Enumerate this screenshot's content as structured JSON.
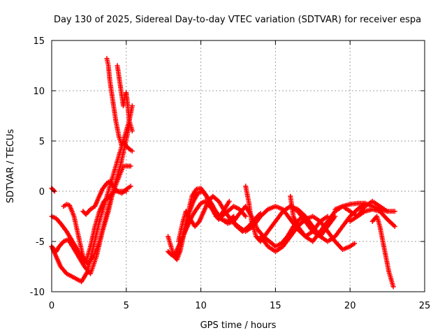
{
  "chart_data": {
    "type": "scatter",
    "title": "Day 130 of 2025, Sidereal Day-to-day VTEC variation (SDTVAR) for receiver espa",
    "xlabel": "GPS time / hours",
    "ylabel": "SDTVAR / TECUs",
    "xlim": [
      0,
      25
    ],
    "ylim": [
      -10,
      15
    ],
    "xticks": [
      0,
      5,
      10,
      15,
      20,
      25
    ],
    "yticks": [
      -10,
      -5,
      0,
      5,
      10,
      15
    ],
    "grid": true,
    "marker": "plus",
    "color": "#ff0000",
    "series": [
      {
        "name": "arc-1",
        "x": [
          0.0,
          0.3,
          0.6,
          1.0,
          1.5,
          2.0,
          2.4,
          2.8,
          3.2,
          3.6,
          4.0,
          4.4,
          4.8,
          5.2,
          5.4
        ],
        "y": [
          -5.5,
          -6.5,
          -7.5,
          -8.2,
          -8.6,
          -9.0,
          -8.0,
          -5.5,
          -3.0,
          -1.0,
          1.0,
          3.0,
          5.0,
          7.0,
          8.5
        ]
      },
      {
        "name": "arc-2",
        "x": [
          0.0,
          0.3,
          0.5,
          0.8,
          1.1,
          1.4,
          1.8,
          2.2,
          2.6,
          3.0,
          3.4,
          3.8,
          4.2,
          4.6,
          4.9,
          5.2
        ],
        "y": [
          -5.5,
          -6.0,
          -5.5,
          -5.0,
          -4.8,
          -5.5,
          -6.5,
          -7.5,
          -8.2,
          -6.5,
          -4.0,
          -2.0,
          0.5,
          2.5,
          4.5,
          6.5
        ]
      },
      {
        "name": "arc-3",
        "x": [
          0.0,
          0.3,
          0.6,
          1.0,
          1.4,
          1.8,
          2.1,
          2.4,
          2.8,
          3.2,
          3.6,
          4.0,
          4.4,
          4.8,
          5.3
        ],
        "y": [
          -2.5,
          -2.7,
          -3.2,
          -4.0,
          -5.0,
          -6.0,
          -6.8,
          -7.2,
          -6.5,
          -5.0,
          -2.8,
          -0.5,
          1.0,
          2.5,
          2.5
        ]
      },
      {
        "name": "arc-4",
        "x": [
          0.8,
          1.0,
          1.2,
          1.5,
          1.8,
          2.1,
          2.3,
          2.6,
          2.9,
          3.2,
          3.5,
          3.9,
          4.2,
          4.5,
          4.8,
          5.0
        ],
        "y": [
          -1.5,
          -1.3,
          -1.4,
          -2.5,
          -4.5,
          -6.5,
          -7.0,
          -5.5,
          -3.5,
          -2.0,
          -1.0,
          -0.5,
          0.0,
          0.0,
          0.0,
          0.0
        ]
      },
      {
        "name": "arc-5",
        "x": [
          2.1,
          2.3,
          2.6,
          2.9,
          3.1,
          3.4,
          3.7,
          3.9,
          4.1,
          4.4,
          4.7,
          5.0,
          5.3
        ],
        "y": [
          -2.0,
          -2.3,
          -1.8,
          -1.5,
          -0.8,
          0.2,
          0.8,
          1.0,
          0.5,
          0.0,
          -0.2,
          0.2,
          0.5
        ]
      },
      {
        "name": "arc-6",
        "x": [
          0.0,
          0.2
        ],
        "y": [
          0.3,
          0.0
        ]
      },
      {
        "name": "arc-7",
        "x": [
          3.7,
          3.8,
          3.9,
          4.0,
          4.1,
          4.2,
          4.3,
          4.5,
          4.7
        ],
        "y": [
          13.2,
          12.5,
          11.0,
          10.0,
          9.0,
          8.0,
          7.0,
          5.5,
          4.5
        ]
      },
      {
        "name": "arc-8",
        "x": [
          4.4,
          4.5,
          4.6,
          4.7,
          4.8,
          4.9,
          5.0,
          5.1,
          5.2,
          5.4
        ],
        "y": [
          12.5,
          11.5,
          10.5,
          9.5,
          8.5,
          9.5,
          9.8,
          8.5,
          7.0,
          6.0
        ]
      },
      {
        "name": "arc-9",
        "x": [
          4.8,
          5.0,
          5.2,
          5.4
        ],
        "y": [
          5.0,
          4.5,
          4.2,
          4.0
        ]
      },
      {
        "name": "arc-10",
        "x": [
          7.8,
          8.0,
          8.2,
          8.4,
          8.6,
          8.8,
          9.1,
          9.4,
          9.7,
          10.0,
          10.3,
          10.6,
          10.9,
          11.2,
          11.5,
          11.9
        ],
        "y": [
          -4.5,
          -5.5,
          -6.5,
          -6.8,
          -6.0,
          -4.5,
          -2.5,
          -0.5,
          0.2,
          0.3,
          -0.3,
          -1.2,
          -2.2,
          -2.8,
          -2.0,
          -1.0
        ]
      },
      {
        "name": "arc-11",
        "x": [
          7.8,
          8.0,
          8.3,
          8.6,
          8.9,
          9.2,
          9.5,
          9.8,
          10.1,
          10.4,
          10.7,
          11.0,
          11.4,
          11.8,
          12.2
        ],
        "y": [
          -6.0,
          -6.3,
          -6.5,
          -6.0,
          -4.0,
          -2.2,
          -1.0,
          -0.2,
          0.0,
          -0.5,
          -1.2,
          -2.0,
          -2.8,
          -3.0,
          -2.5
        ]
      },
      {
        "name": "arc-12",
        "x": [
          8.2,
          8.5,
          8.8,
          9.1,
          9.4,
          9.7,
          10.0,
          10.3,
          10.6,
          11.0,
          11.4,
          11.8,
          12.2,
          12.6,
          13.0
        ],
        "y": [
          -6.5,
          -5.5,
          -4.5,
          -3.5,
          -2.5,
          -1.8,
          -1.2,
          -1.0,
          -1.5,
          -2.2,
          -2.5,
          -2.0,
          -1.5,
          -1.8,
          -2.5
        ]
      },
      {
        "name": "arc-13",
        "x": [
          8.5,
          8.8,
          9.0,
          9.3,
          9.6,
          9.9,
          10.2,
          10.5,
          10.8,
          11.2,
          11.6,
          12.0,
          12.4,
          12.8,
          13.2,
          13.6,
          14.0
        ],
        "y": [
          -5.0,
          -3.0,
          -2.0,
          -2.8,
          -3.5,
          -3.0,
          -2.0,
          -1.0,
          -0.5,
          -1.0,
          -2.0,
          -2.8,
          -3.5,
          -4.0,
          -3.5,
          -2.8,
          -2.2
        ]
      },
      {
        "name": "arc-14",
        "x": [
          11.0,
          11.4,
          11.8,
          12.2,
          12.6,
          13.0,
          13.4,
          13.8,
          14.2,
          14.6,
          15.0,
          15.4,
          15.8,
          16.2,
          16.6,
          17.0
        ],
        "y": [
          -2.5,
          -2.8,
          -3.2,
          -3.0,
          -2.2,
          -1.5,
          -2.5,
          -3.8,
          -4.5,
          -5.0,
          -5.5,
          -5.2,
          -4.5,
          -3.5,
          -2.8,
          -2.5
        ]
      },
      {
        "name": "arc-15",
        "x": [
          12.0,
          12.5,
          13.0,
          13.5,
          14.0,
          14.5,
          15.0,
          15.5,
          16.0,
          16.5,
          17.0,
          17.5,
          18.0,
          18.5
        ],
        "y": [
          -2.8,
          -3.5,
          -4.0,
          -3.5,
          -2.5,
          -1.8,
          -1.5,
          -1.8,
          -2.8,
          -3.8,
          -4.5,
          -4.0,
          -3.0,
          -2.5
        ]
      },
      {
        "name": "arc-16",
        "x": [
          13.0,
          13.2,
          13.4,
          13.7,
          14.0,
          14.5,
          15.0,
          15.5,
          16.0,
          16.5,
          17.0,
          17.5,
          18.0,
          18.5,
          19.0
        ],
        "y": [
          0.5,
          -1.0,
          -3.0,
          -4.5,
          -5.0,
          -4.0,
          -3.0,
          -2.0,
          -1.5,
          -2.0,
          -3.0,
          -4.0,
          -4.5,
          -3.5,
          -2.5
        ]
      },
      {
        "name": "arc-17",
        "x": [
          14.0,
          14.5,
          15.0,
          15.5,
          16.0,
          16.5,
          17.0,
          17.5,
          18.0,
          18.5,
          19.0,
          19.5,
          20.0,
          20.3
        ],
        "y": [
          -4.5,
          -5.5,
          -6.0,
          -5.5,
          -4.5,
          -3.5,
          -2.8,
          -2.5,
          -3.0,
          -4.0,
          -5.0,
          -5.8,
          -5.5,
          -5.2
        ]
      },
      {
        "name": "arc-18",
        "x": [
          15.5,
          16.0,
          16.5,
          17.0,
          17.5,
          18.0,
          18.5,
          19.0,
          19.5,
          20.0,
          20.5,
          21.0
        ],
        "y": [
          -2.0,
          -1.5,
          -1.8,
          -2.5,
          -3.5,
          -4.5,
          -5.0,
          -4.5,
          -3.5,
          -2.5,
          -1.8,
          -1.2
        ]
      },
      {
        "name": "arc-19",
        "x": [
          16.0,
          16.2,
          16.5,
          17.0,
          17.5,
          18.0,
          18.5,
          19.0,
          19.5,
          20.0,
          20.5,
          21.0,
          21.5,
          22.0,
          22.5
        ],
        "y": [
          -0.5,
          -2.5,
          -3.5,
          -4.5,
          -5.0,
          -4.0,
          -3.0,
          -2.0,
          -1.5,
          -2.0,
          -2.5,
          -1.5,
          -1.0,
          -1.5,
          -2.0
        ]
      },
      {
        "name": "arc-20",
        "x": [
          19.0,
          19.5,
          20.0,
          20.5,
          21.0,
          21.5,
          22.0,
          22.5,
          23.0
        ],
        "y": [
          -1.8,
          -1.5,
          -1.3,
          -1.2,
          -1.2,
          -1.5,
          -1.8,
          -2.0,
          -2.0
        ]
      },
      {
        "name": "arc-21",
        "x": [
          20.0,
          20.5,
          21.0,
          21.5,
          22.0,
          22.5,
          23.0
        ],
        "y": [
          -3.0,
          -2.5,
          -2.0,
          -1.8,
          -2.0,
          -2.8,
          -3.5
        ]
      },
      {
        "name": "arc-22",
        "x": [
          21.5,
          21.8,
          22.0,
          22.2,
          22.4,
          22.6,
          22.8,
          22.9
        ],
        "y": [
          -3.0,
          -2.5,
          -3.5,
          -5.0,
          -6.5,
          -8.0,
          -9.0,
          -9.5
        ]
      }
    ]
  }
}
